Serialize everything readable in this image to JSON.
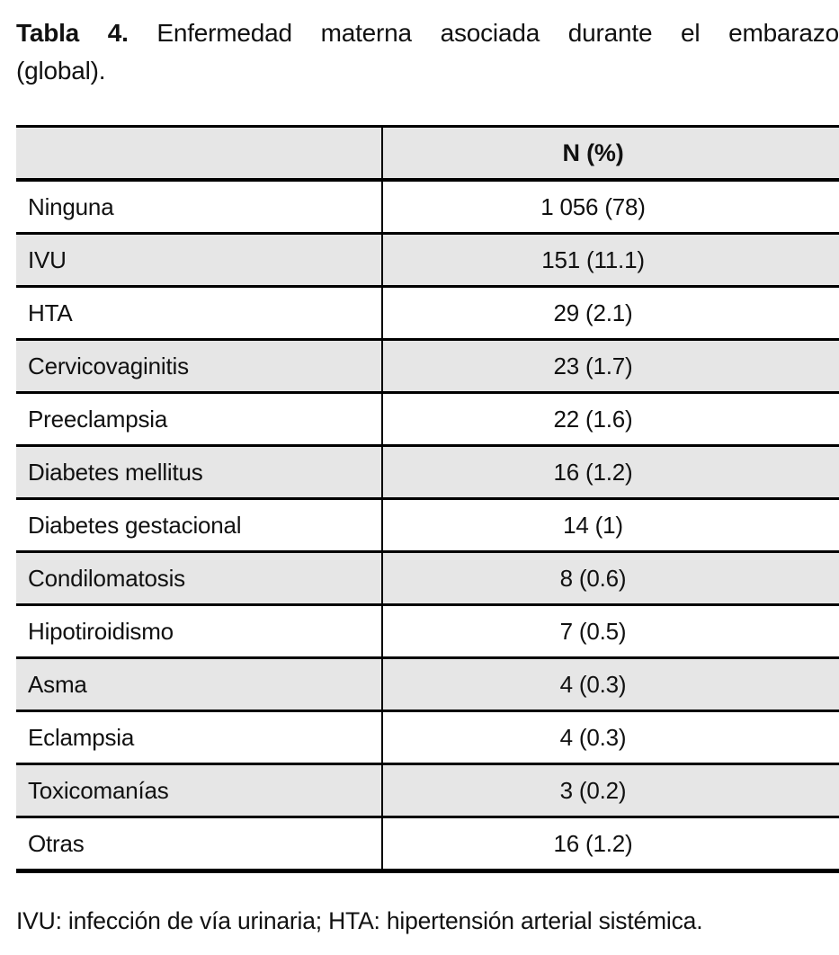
{
  "caption": {
    "label": "Tabla 4.",
    "line1_rest": "Enfermedad materna asociada durante el embarazo",
    "line2": "(global)."
  },
  "table": {
    "header": {
      "name_col": "",
      "value_col": "N (%)"
    },
    "rows": [
      {
        "name": "Ninguna",
        "value": "1 056 (78)"
      },
      {
        "name": "IVU",
        "value": "151 (11.1)"
      },
      {
        "name": "HTA",
        "value": "29 (2.1)"
      },
      {
        "name": "Cervicovaginitis",
        "value": "23 (1.7)"
      },
      {
        "name": "Preeclampsia",
        "value": "22 (1.6)"
      },
      {
        "name": "Diabetes mellitus",
        "value": "16 (1.2)"
      },
      {
        "name": "Diabetes gestacional",
        "value": "14 (1)"
      },
      {
        "name": "Condilomatosis",
        "value": "8 (0.6)"
      },
      {
        "name": "Hipotiroidismo",
        "value": "7 (0.5)"
      },
      {
        "name": "Asma",
        "value": "4 (0.3)"
      },
      {
        "name": "Eclampsia",
        "value": "4 (0.3)"
      },
      {
        "name": "Toxicomanías",
        "value": "3 (0.2)"
      },
      {
        "name": "Otras",
        "value": "16 (1.2)"
      }
    ]
  },
  "footnote": "IVU: infección de vía urinaria; HTA: hipertensión arterial sistémica.",
  "colors": {
    "row_shade": "#e6e6e6",
    "border": "#000000",
    "text": "#111111",
    "background": "#ffffff"
  }
}
